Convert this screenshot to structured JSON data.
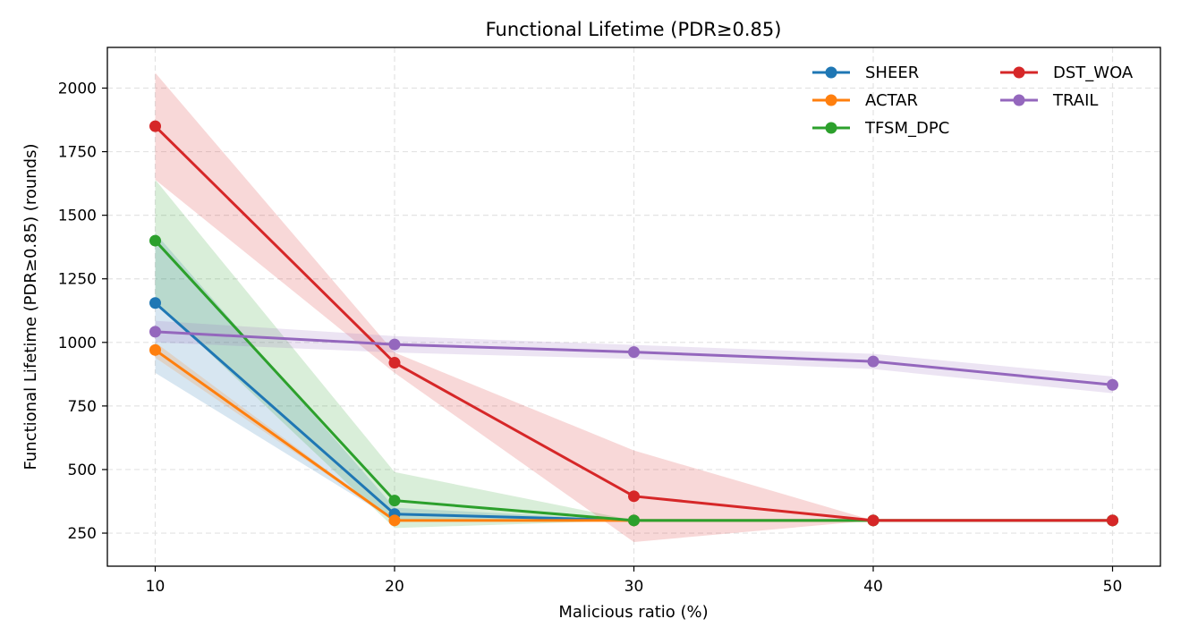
{
  "chart_data": {
    "type": "line",
    "title": "Functional Lifetime (PDR≥0.85)",
    "xlabel": "Malicious ratio (%)",
    "ylabel": "Functional Lifetime (PDR≥0.85) (rounds)",
    "x": [
      10,
      20,
      30,
      40,
      50
    ],
    "x_ticks": [
      10,
      20,
      30,
      40,
      50
    ],
    "y_ticks": [
      250,
      500,
      750,
      1000,
      1250,
      1500,
      1750,
      2000
    ],
    "xlim": [
      8,
      52
    ],
    "ylim": [
      120,
      2160
    ],
    "grid": true,
    "legend_position": "top-right",
    "series": [
      {
        "name": "SHEER",
        "color": "#1f77b4",
        "values": [
          1155,
          325,
          300,
          300,
          300
        ],
        "lower": [
          880,
          300,
          300,
          300,
          300
        ],
        "upper": [
          1430,
          350,
          300,
          300,
          300
        ]
      },
      {
        "name": "ACTAR",
        "color": "#ff7f0e",
        "values": [
          970,
          300,
          300,
          300,
          300
        ],
        "lower": [
          940,
          300,
          300,
          300,
          300
        ],
        "upper": [
          1000,
          300,
          300,
          300,
          300
        ]
      },
      {
        "name": "TFSM_DPC",
        "color": "#2ca02c",
        "values": [
          1400,
          378,
          300,
          300,
          300
        ],
        "lower": [
          1160,
          270,
          300,
          300,
          300
        ],
        "upper": [
          1640,
          490,
          300,
          300,
          300
        ]
      },
      {
        "name": "DST_WOA",
        "color": "#d62728",
        "values": [
          1850,
          920,
          395,
          300,
          300
        ],
        "lower": [
          1640,
          880,
          215,
          300,
          300
        ],
        "upper": [
          2060,
          960,
          575,
          300,
          300
        ]
      },
      {
        "name": "TRAIL",
        "color": "#9467bd",
        "values": [
          1042,
          992,
          962,
          925,
          833
        ],
        "lower": [
          1000,
          960,
          935,
          895,
          800
        ],
        "upper": [
          1085,
          1025,
          990,
          955,
          866
        ]
      }
    ]
  }
}
